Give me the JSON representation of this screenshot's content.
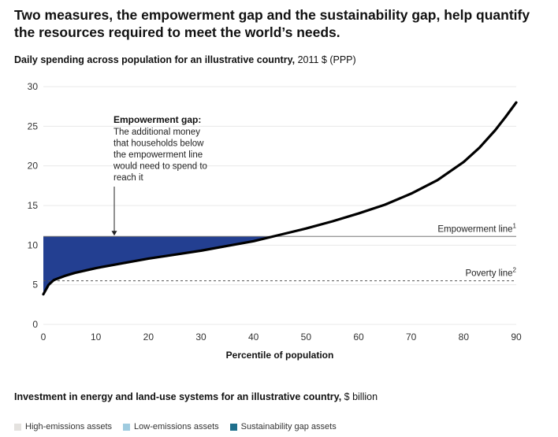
{
  "headline": {
    "line1": "Two measures, the empowerment gap and the sustainability gap, help quantify",
    "line2": "the resources required to meet the world’s needs."
  },
  "chart_section": {
    "title_bold": "Daily spending across population for an illustrative country,",
    "title_units": " 2011 $ (PPP)"
  },
  "chart_data": {
    "type": "line",
    "title": "Daily spending across population for an illustrative country, 2011 $ (PPP)",
    "xlabel": "Percentile of population",
    "ylabel": "",
    "xlim": [
      0,
      90
    ],
    "ylim": [
      0,
      30
    ],
    "x_ticks": [
      0,
      10,
      20,
      30,
      40,
      50,
      60,
      70,
      80,
      90
    ],
    "y_ticks": [
      0,
      5,
      10,
      15,
      20,
      25,
      30
    ],
    "series": [
      {
        "name": "Daily spending",
        "x": [
          0,
          1,
          2,
          4,
          6,
          8,
          10,
          15,
          20,
          25,
          30,
          35,
          40,
          45,
          50,
          55,
          60,
          65,
          70,
          75,
          80,
          83,
          86,
          88,
          90
        ],
        "y": [
          3.8,
          5.0,
          5.6,
          6.1,
          6.5,
          6.8,
          7.1,
          7.7,
          8.3,
          8.8,
          9.3,
          9.9,
          10.5,
          11.3,
          12.1,
          13.0,
          14.0,
          15.1,
          16.5,
          18.2,
          20.5,
          22.3,
          24.5,
          26.2,
          28.0
        ]
      }
    ],
    "reference_lines": [
      {
        "name": "Empowerment line",
        "label": "Empowerment line",
        "superscript": "1",
        "y": 11.1,
        "style": "solid"
      },
      {
        "name": "Poverty line",
        "label": "Poverty line",
        "superscript": "2",
        "y": 5.5,
        "style": "dashed"
      }
    ],
    "shaded_area": {
      "name": "Empowerment gap",
      "between": [
        "Daily spending",
        "Empowerment line"
      ],
      "x_range": [
        0,
        43.5
      ],
      "color": "#233f91"
    },
    "annotation": {
      "title": "Empowerment gap:",
      "lines": [
        "The additional money",
        "that households below",
        "the empowerment line",
        "would need to spend to",
        "reach it"
      ],
      "arrow_x": 13.5
    }
  },
  "section2": {
    "title_bold": "Investment in energy and land-use systems for an illustrative country,",
    "title_units": " $ billion"
  },
  "legend": [
    {
      "label": "High-emissions assets",
      "color": "#e4e2df"
    },
    {
      "label": "Low-emissions assets",
      "color": "#9fcbdf"
    },
    {
      "label": "Sustainability gap assets",
      "color": "#1f6f8c"
    }
  ],
  "colors": {
    "gap_fill": "#233f91",
    "curve": "#000000",
    "grid": "#e8e8e8",
    "ref_line": "#777777"
  }
}
